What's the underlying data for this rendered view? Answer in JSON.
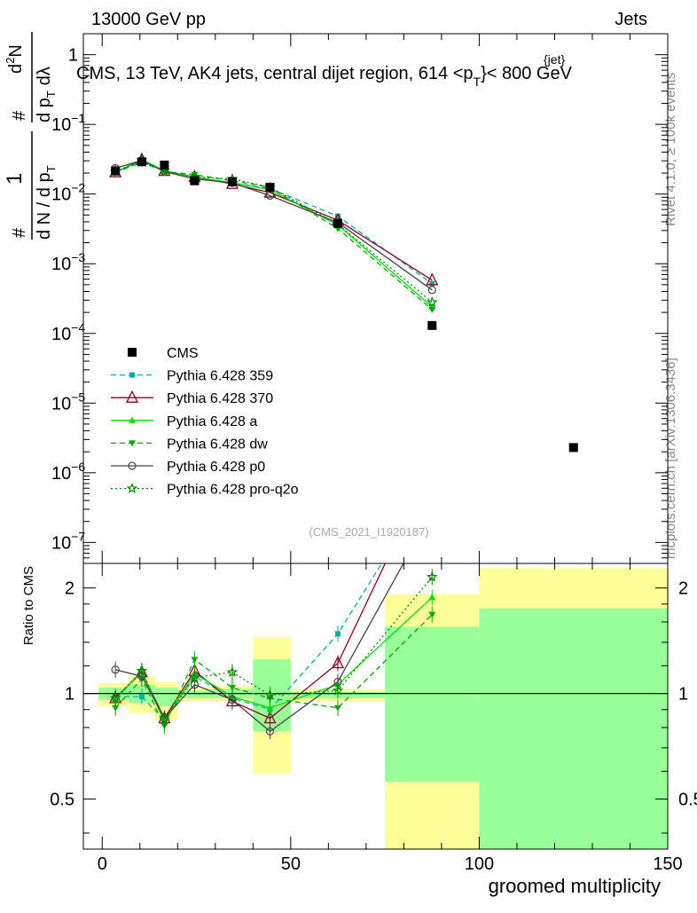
{
  "header": {
    "left": "13000 GeV pp",
    "right": "Jets",
    "plot_title": "CMS, 13 TeV, AK4 jets, central dijet region, 614 <p",
    "plot_title_sub": "T",
    "plot_title_sup": "{jet}",
    "plot_title_end": "}< 800 GeV",
    "side_right_top": "Rivet 4.1.0, ≥ 100k events",
    "side_right_bottom": "mcplots.cern.ch [arXiv:1306.3436]",
    "watermark": "(CMS_2021_I1920187)"
  },
  "chart_data": [
    {
      "type": "line",
      "panel": "main",
      "ylabel": "1/N dN/dp_T d²N/dp_T dλ",
      "ylabel_parts": {
        "hash1": "#",
        "one": "1",
        "hash2": "#",
        "dN": "d N / d p",
        "T": "T",
        "d2N": "d",
        "sup2": "2",
        "N": "N",
        "dpt": "d p",
        "dl": "dλ"
      },
      "yscale": "log",
      "ylim": [
        5e-08,
        2
      ],
      "xlim": [
        -5,
        150
      ],
      "y_ticks": [
        {
          "v": 1,
          "label": "1"
        },
        {
          "v": 0.1,
          "base": "10",
          "exp": "−1"
        },
        {
          "v": 0.01,
          "base": "10",
          "exp": "−2"
        },
        {
          "v": 0.001,
          "base": "10",
          "exp": "−3"
        },
        {
          "v": 0.0001,
          "base": "10",
          "exp": "−4"
        },
        {
          "v": 1e-05,
          "base": "10",
          "exp": "−5"
        },
        {
          "v": 1e-06,
          "base": "10",
          "exp": "−6"
        },
        {
          "v": 1e-07,
          "base": "10",
          "exp": "−7"
        }
      ],
      "data_series": {
        "name": "CMS",
        "x": [
          3.5,
          10.5,
          16.5,
          24.5,
          34.5,
          44.5,
          62.5,
          87.5,
          125
        ],
        "y": [
          0.0215,
          0.029,
          0.026,
          0.0155,
          0.015,
          0.0125,
          0.0038,
          0.00013,
          2.3e-06
        ]
      },
      "series": [
        {
          "name": "Pythia 6.428 359",
          "color": "#00b0a0",
          "dash": "6,4",
          "marker": "square-small",
          "x": [
            3.5,
            10.5,
            16.5,
            24.5,
            34.5,
            44.5,
            62.5,
            87.5
          ],
          "y": [
            0.021,
            0.028,
            0.0215,
            0.0175,
            0.0145,
            0.012,
            0.0048,
            0.00052
          ]
        },
        {
          "name": "Pythia 6.428 370",
          "color": "#8b0020",
          "dash": "",
          "marker": "triangle-open",
          "x": [
            3.5,
            10.5,
            16.5,
            24.5,
            34.5,
            44.5,
            62.5,
            87.5
          ],
          "y": [
            0.0205,
            0.031,
            0.0215,
            0.0175,
            0.014,
            0.0105,
            0.0042,
            0.00058
          ]
        },
        {
          "name": "Pythia 6.428 a",
          "color": "#00dd00",
          "dash": "",
          "marker": "triangle-filled",
          "x": [
            3.5,
            10.5,
            16.5,
            24.5,
            34.5,
            44.5,
            62.5,
            87.5
          ],
          "y": [
            0.0205,
            0.0315,
            0.0215,
            0.0175,
            0.0145,
            0.0115,
            0.0036,
            0.00024
          ]
        },
        {
          "name": "Pythia 6.428 dw",
          "color": "#00aa00",
          "dash": "6,4",
          "marker": "triangle-down",
          "x": [
            3.5,
            10.5,
            16.5,
            24.5,
            34.5,
            44.5,
            62.5,
            87.5
          ],
          "y": [
            0.0195,
            0.0305,
            0.021,
            0.019,
            0.0155,
            0.0125,
            0.0032,
            0.00022
          ]
        },
        {
          "name": "Pythia 6.428 p0",
          "color": "#444444",
          "dash": "",
          "marker": "circle-open",
          "x": [
            3.5,
            10.5,
            16.5,
            24.5,
            34.5,
            44.5,
            62.5,
            87.5
          ],
          "y": [
            0.0235,
            0.0305,
            0.021,
            0.0165,
            0.0145,
            0.0095,
            0.0039,
            0.00042
          ]
        },
        {
          "name": "Pythia 6.428 pro-q2o",
          "color": "#008800",
          "dash": "2,3",
          "marker": "star-open",
          "x": [
            3.5,
            10.5,
            16.5,
            24.5,
            34.5,
            44.5,
            62.5,
            87.5
          ],
          "y": [
            0.021,
            0.0305,
            0.0215,
            0.0175,
            0.0165,
            0.0125,
            0.0037,
            0.00028
          ]
        }
      ]
    },
    {
      "type": "line",
      "panel": "ratio",
      "ylabel": "Ratio to CMS",
      "xlabel": "groomed multiplicity",
      "yscale": "log",
      "ylim": [
        0.36,
        2.35
      ],
      "xlim": [
        -5,
        150
      ],
      "y_ticks": [
        {
          "v": 0.5,
          "label": "0.5"
        },
        {
          "v": 1,
          "label": "1"
        },
        {
          "v": 2,
          "label": "2"
        }
      ],
      "x_ticks": [
        {
          "v": 0,
          "label": "0"
        },
        {
          "v": 50,
          "label": "50"
        },
        {
          "v": 100,
          "label": "100"
        },
        {
          "v": 150,
          "label": "150"
        }
      ],
      "bands": [
        {
          "x0": -1,
          "x1": 7,
          "yellow": [
            0.92,
            1.07
          ],
          "green": [
            0.96,
            1.04
          ]
        },
        {
          "x0": 7,
          "x1": 14,
          "yellow": [
            0.88,
            1.12
          ],
          "green": [
            0.94,
            1.06
          ]
        },
        {
          "x0": 14,
          "x1": 20,
          "yellow": [
            0.84,
            1.08
          ],
          "green": [
            0.92,
            1.04
          ]
        },
        {
          "x0": 20,
          "x1": 29,
          "yellow": [
            0.95,
            1.04
          ],
          "green": [
            0.97,
            1.02
          ]
        },
        {
          "x0": 29,
          "x1": 40,
          "yellow": [
            0.95,
            1.05
          ],
          "green": [
            0.97,
            1.03
          ]
        },
        {
          "x0": 40,
          "x1": 50,
          "yellow": [
            0.59,
            1.45
          ],
          "green": [
            0.78,
            1.25
          ]
        },
        {
          "x0": 50,
          "x1": 75,
          "yellow": [
            0.95,
            1.03
          ],
          "green": [
            0.97,
            1.01
          ]
        },
        {
          "x0": 75,
          "x1": 100,
          "yellow": [
            0.36,
            1.92
          ],
          "green": [
            0.56,
            1.55
          ]
        },
        {
          "x0": 100,
          "x1": 150,
          "yellow": [
            0.36,
            2.28
          ],
          "green": [
            0.36,
            1.75
          ]
        }
      ],
      "series": [
        {
          "name": "Pythia 6.428 359",
          "y": [
            0.98,
            0.98,
            0.84,
            1.12,
            0.97,
            0.9,
            1.48,
            4.0
          ]
        },
        {
          "name": "Pythia 6.428 370",
          "y": [
            0.97,
            1.15,
            0.85,
            1.16,
            0.95,
            0.85,
            1.22,
            4.5
          ]
        },
        {
          "name": "Pythia 6.428 a",
          "y": [
            0.96,
            1.16,
            0.83,
            1.14,
            0.98,
            0.91,
            1.06,
            1.88
          ]
        },
        {
          "name": "Pythia 6.428 dw",
          "y": [
            0.91,
            1.1,
            0.81,
            1.25,
            1.04,
            0.97,
            0.91,
            1.68
          ]
        },
        {
          "name": "Pythia 6.428 p0",
          "y": [
            1.17,
            1.12,
            0.85,
            1.06,
            0.96,
            0.78,
            1.08,
            3.3
          ]
        },
        {
          "name": "Pythia 6.428 pro-q2o",
          "y": [
            0.97,
            1.16,
            0.84,
            1.11,
            1.15,
            0.99,
            1.02,
            2.15
          ]
        }
      ]
    }
  ]
}
